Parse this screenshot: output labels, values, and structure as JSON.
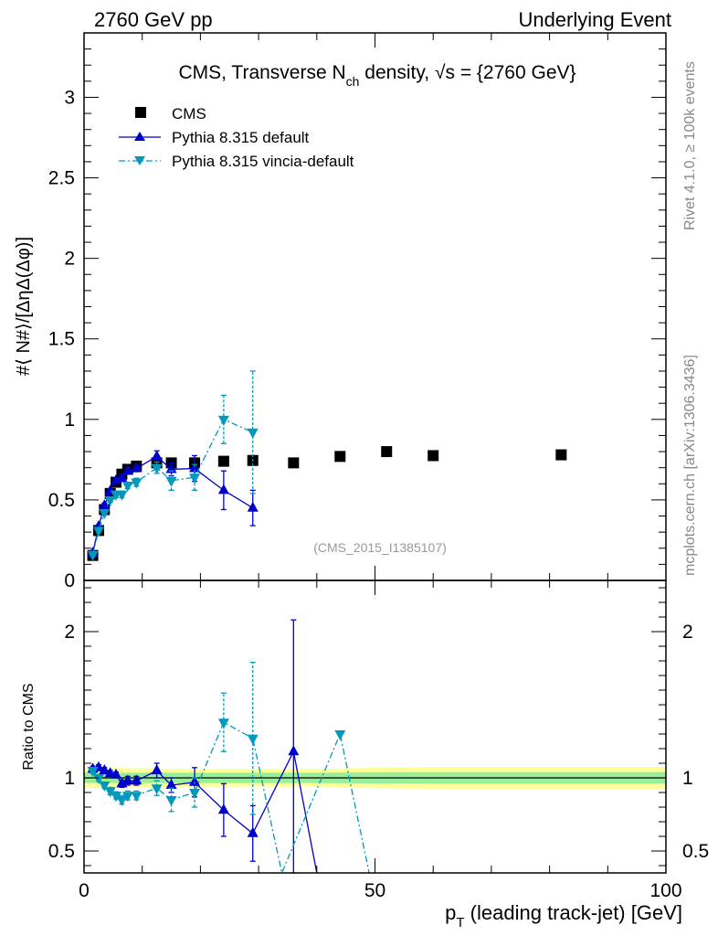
{
  "header": {
    "left": "2760 GeV pp",
    "right": "Underlying Event"
  },
  "side_text": {
    "rivet": "Rivet 4.1.0, ≥ 100k events",
    "mcplots": "mcplots.cern.ch [arXiv:1306.3436]"
  },
  "chart_data": [
    {
      "type": "scatter",
      "title": "CMS, Transverse N_ch density, √s = {2760 GeV}",
      "title_parts": {
        "main": "CMS, Transverse N",
        "sub": "ch",
        "after": " density, ",
        "sqrt": "√s",
        "tail": " = {2760 GeV}"
      },
      "ylabel": "#⟨ N#⟩/[ΔηΔ(Δφ)]",
      "xlabel": "",
      "analysis_tag": "(CMS_2015_I1385107)",
      "xlim": [
        0,
        100
      ],
      "ylim": [
        0,
        3.4
      ],
      "yticks": [
        {
          "v": 0,
          "label": "0"
        },
        {
          "v": 0.5,
          "label": "0.5"
        },
        {
          "v": 1,
          "label": "1"
        },
        {
          "v": 1.5,
          "label": "1.5"
        },
        {
          "v": 2,
          "label": "2"
        },
        {
          "v": 2.5,
          "label": "2.5"
        },
        {
          "v": 3,
          "label": "3"
        }
      ],
      "legend": [
        "CMS",
        "Pythia 8.315 default",
        "Pythia 8.315 vincia-default"
      ],
      "legend_position": "top-left",
      "series": [
        {
          "name": "CMS",
          "color": "#000000",
          "marker": "square",
          "x": [
            1.5,
            2.5,
            3.5,
            4.5,
            5.5,
            6.5,
            7.5,
            9,
            12.5,
            15,
            19,
            24,
            29,
            36,
            44,
            52,
            60,
            82
          ],
          "y": [
            0.155,
            0.31,
            0.44,
            0.54,
            0.61,
            0.66,
            0.69,
            0.71,
            0.73,
            0.73,
            0.73,
            0.74,
            0.745,
            0.73,
            0.77,
            0.8,
            0.775,
            0.78
          ],
          "err": [
            0,
            0,
            0,
            0,
            0,
            0,
            0,
            0,
            0,
            0,
            0,
            0,
            0,
            0,
            0,
            0,
            0,
            0
          ]
        },
        {
          "name": "Pythia 8.315 default",
          "color": "#0000cc",
          "marker": "triangle-up",
          "x": [
            1.5,
            2.5,
            3.5,
            4.5,
            5.5,
            6.5,
            7.5,
            9,
            12.5,
            15,
            19,
            24,
            29
          ],
          "y": [
            0.17,
            0.335,
            0.465,
            0.555,
            0.62,
            0.635,
            0.68,
            0.695,
            0.77,
            0.69,
            0.695,
            0.56,
            0.45
          ],
          "err": [
            0.01,
            0.01,
            0.015,
            0.015,
            0.015,
            0.02,
            0.02,
            0.02,
            0.035,
            0.04,
            0.08,
            0.12,
            0.11
          ]
        },
        {
          "name": "Pythia 8.315 vincia-default",
          "color": "#0099bb",
          "marker": "triangle-down",
          "x": [
            1.5,
            2.5,
            3.5,
            4.5,
            5.5,
            6.5,
            7.5,
            9,
            12.5,
            15,
            19,
            24,
            29
          ],
          "y": [
            0.16,
            0.31,
            0.42,
            0.5,
            0.535,
            0.535,
            0.59,
            0.61,
            0.7,
            0.62,
            0.64,
            1.0,
            0.92
          ],
          "err": [
            0.01,
            0.01,
            0.015,
            0.015,
            0.02,
            0.02,
            0.02,
            0.025,
            0.035,
            0.06,
            0.08,
            0.15,
            0.38
          ]
        }
      ]
    },
    {
      "type": "scatter",
      "title": "",
      "ylabel": "Ratio to CMS",
      "xlabel": "p_T (leading track-jet) [GeV]",
      "xlabel_parts": {
        "p": "p",
        "sub": "T",
        "rest": " (leading track-jet) [GeV]"
      },
      "xlim": [
        0,
        100
      ],
      "ylim": [
        0.35,
        2.35
      ],
      "xticks": [
        {
          "v": 0,
          "label": "0"
        },
        {
          "v": 50,
          "label": "50"
        },
        {
          "v": 100,
          "label": "100"
        }
      ],
      "yticks": [
        {
          "v": 0.5,
          "label": "0.5"
        },
        {
          "v": 1,
          "label": "1"
        },
        {
          "v": 2,
          "label": "2"
        }
      ],
      "reference_line": 1,
      "bands": {
        "x": [
          0,
          10,
          20,
          30,
          40,
          50,
          60,
          70,
          80,
          90,
          100
        ],
        "inner": [
          0.035,
          0.035,
          0.035,
          0.035,
          0.035,
          0.038,
          0.04,
          0.04,
          0.04,
          0.04,
          0.04
        ],
        "outer": [
          0.07,
          0.065,
          0.06,
          0.06,
          0.06,
          0.07,
          0.075,
          0.075,
          0.075,
          0.075,
          0.075
        ],
        "inner_color": "#99ee99",
        "outer_color": "#ffff99"
      },
      "series": [
        {
          "name": "Pythia 8.315 default",
          "color": "#0000cc",
          "marker": "triangle-up",
          "x": [
            1.5,
            2.5,
            3.5,
            4.5,
            5.5,
            6.5,
            7.5,
            9,
            12.5,
            15,
            19,
            24,
            29,
            36,
            40
          ],
          "y": [
            1.06,
            1.07,
            1.05,
            1.03,
            1.02,
            0.96,
            0.98,
            0.98,
            1.05,
            0.95,
            0.97,
            0.78,
            0.62,
            1.18,
            0.35
          ],
          "err": [
            0.02,
            0.02,
            0.02,
            0.02,
            0.02,
            0.025,
            0.03,
            0.03,
            0.05,
            0.05,
            0.1,
            0.18,
            0.19,
            0.9,
            0
          ]
        },
        {
          "name": "Pythia 8.315 vincia-default",
          "color": "#0099bb",
          "marker": "triangle-down",
          "x": [
            1.5,
            2.5,
            3.5,
            4.5,
            5.5,
            6.5,
            7.5,
            9,
            12.5,
            15,
            19,
            24,
            29,
            34,
            44,
            49
          ],
          "y": [
            1.05,
            1.0,
            0.95,
            0.91,
            0.88,
            0.85,
            0.88,
            0.88,
            0.93,
            0.85,
            0.9,
            1.38,
            1.27,
            0.35,
            1.3,
            0.35
          ],
          "err": [
            0.02,
            0.02,
            0.02,
            0.025,
            0.025,
            0.03,
            0.03,
            0.03,
            0.05,
            0.08,
            0.1,
            0.2,
            0.52,
            0,
            0,
            0
          ]
        }
      ]
    }
  ]
}
